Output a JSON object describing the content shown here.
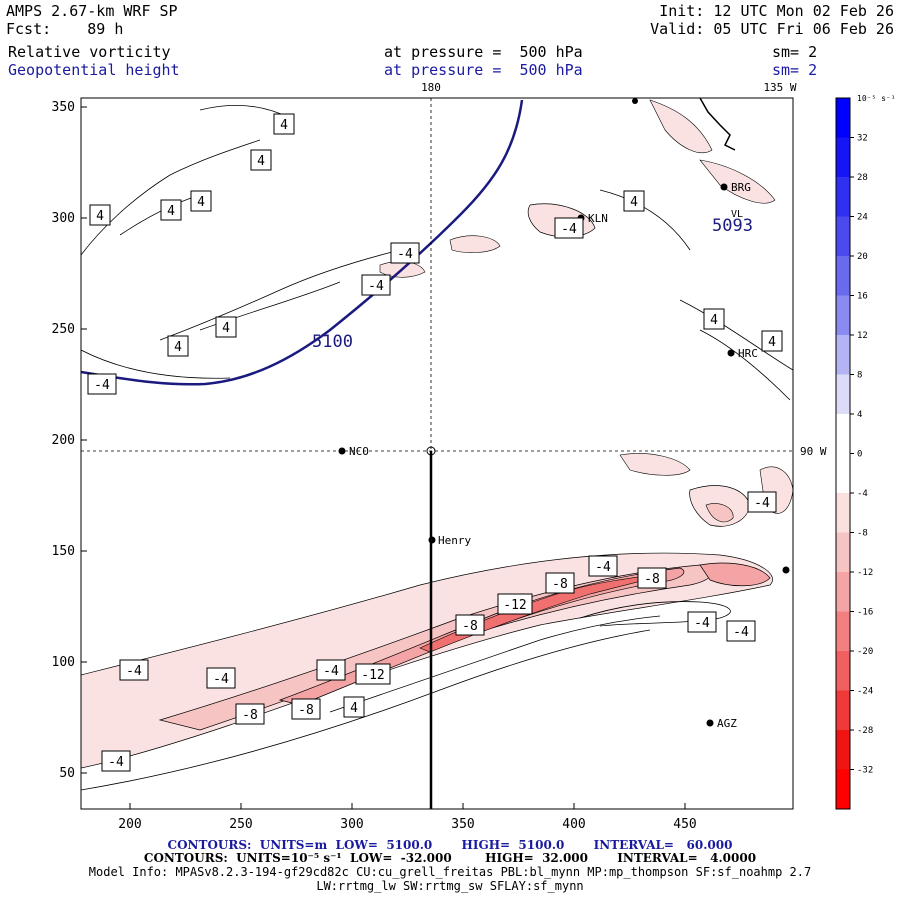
{
  "header": {
    "model": "AMPS 2.67-km WRF SP",
    "init": "Init: 12 UTC Mon 02 Feb 26",
    "fcst": "Fcst:    89 h",
    "valid": "Valid: 05 UTC Fri 06 Feb 26",
    "field1": "Relative vorticity",
    "field1_level": "at pressure =  500 hPa",
    "field1_sm": "sm= 2",
    "field2": "Geopotential height",
    "field2_level": "at pressure =  500 hPa",
    "field2_sm": "sm= 2"
  },
  "plot": {
    "x_ticks": [
      "200",
      "250",
      "300",
      "350",
      "400",
      "450"
    ],
    "y_ticks": [
      "350",
      "300",
      "250",
      "200",
      "150",
      "100",
      "50"
    ],
    "meridian_label": "180",
    "meridian_label_2": "135 W",
    "parallel_label": "90 W",
    "stations": [
      {
        "name": "KLN"
      },
      {
        "name": "HRC"
      },
      {
        "name": "NCO"
      },
      {
        "name": "Henry"
      },
      {
        "name": "AGZ"
      },
      {
        "name": "BRG"
      },
      {
        "name": "VL"
      }
    ],
    "height_labels": [
      "5100",
      "5093"
    ],
    "vorticity_labels": [
      "4",
      "4",
      "4",
      "4",
      "4",
      "4",
      "4",
      "4",
      "4",
      "4",
      "-4",
      "-4",
      "-4",
      "-4",
      "-4",
      "-4",
      "-4",
      "-4",
      "-4",
      "-4",
      "-4",
      "-4",
      "-8",
      "-8",
      "-8",
      "-8",
      "-12",
      "-12",
      "4"
    ]
  },
  "colorbar": {
    "unit": "10⁻⁵ s⁻¹",
    "levels": [
      "32",
      "28",
      "24",
      "20",
      "16",
      "12",
      "8",
      "4",
      "0",
      "-4",
      "-8",
      "-12",
      "-16",
      "-20",
      "-24",
      "-28",
      "-32"
    ],
    "colors": [
      "#0000ff",
      "#1515f5",
      "#3030f0",
      "#4a4aee",
      "#6a6aee",
      "#8a8af0",
      "#b4b4f4",
      "#dcdcf8",
      "#ffffff",
      "#ffffff",
      "#fbe0e0",
      "#f7c4c4",
      "#f4a4a4",
      "#f28080",
      "#f06060",
      "#f03a3a",
      "#f01414",
      "#ff0000"
    ]
  },
  "footer": {
    "line1": "CONTOURS:  UNITS=m  LOW=  5100.0       HIGH=  5100.0       INTERVAL=   60.000",
    "line2": "CONTOURS:  UNITS=10⁻⁵ s⁻¹  LOW=  -32.000        HIGH=  32.000       INTERVAL=   4.0000",
    "line3": "Model Info: MPASv8.2.3-194-gf29cd82c CU:cu_grell_freitas PBL:bl_mynn MP:mp_thompson SF:sf_noahmp 2.7",
    "line4": "LW:rrtmg_lw SW:rrtmg_sw SFLAY:sf_mynn"
  }
}
